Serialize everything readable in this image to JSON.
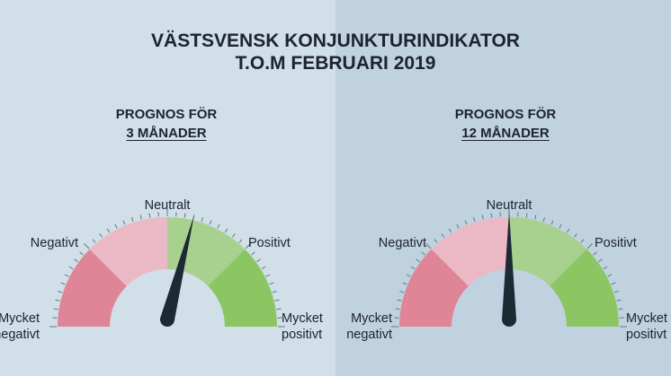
{
  "title": {
    "line1": "VÄSTSVENSK KONJUNKTURINDIKATOR",
    "line2": "T.O.M FEBRUARI 2019"
  },
  "gauges": [
    {
      "heading_line1": "PROGNOS FÖR",
      "heading_line2": "3 MÅNADER",
      "needle_position": 0.58,
      "labels": {
        "neutral": "Neutralt",
        "negative": "Negativt",
        "positive": "Positivt",
        "very_negative_1": "Mycket",
        "very_negative_2": "negativt",
        "very_positive_1": "Mycket",
        "very_positive_2": "positivt"
      }
    },
    {
      "heading_line1": "PROGNOS FÖR",
      "heading_line2": "12 MÅNADER",
      "needle_position": 0.5,
      "labels": {
        "neutral": "Neutralt",
        "negative": "Negativt",
        "positive": "Positivt",
        "very_negative_1": "Mycket",
        "very_negative_2": "negativt",
        "very_positive_1": "Mycket",
        "very_positive_2": "positivt"
      }
    }
  ],
  "colors": {
    "very_negative": "#df8597",
    "negative": "#ebb8c5",
    "positive": "#a8d08f",
    "very_positive": "#8cc663",
    "needle": "#1c2a33",
    "ticks": "#6a7580"
  }
}
